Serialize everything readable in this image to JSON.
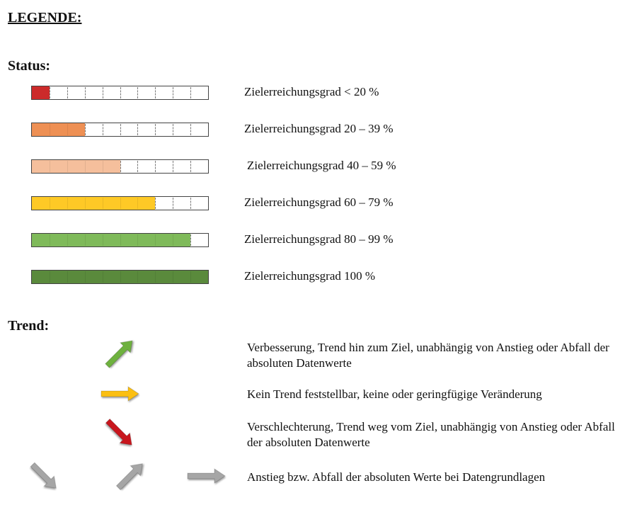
{
  "legend_title": "LEGENDE:",
  "status": {
    "heading": "Status:",
    "segments_total": 10,
    "rows": [
      {
        "label": "Zielerreichungsgrad < 20 %",
        "filled_segments": 1,
        "color": "#cc2a2a"
      },
      {
        "label": "Zielerreichungsgrad 20 – 39 %",
        "filled_segments": 3,
        "color": "#ee9054"
      },
      {
        "label": "Zielerreichungsgrad 40 – 59 %",
        "filled_segments": 5,
        "color": "#f5bf9c"
      },
      {
        "label": "Zielerreichungsgrad 60 – 79 %",
        "filled_segments": 7,
        "color": "#fec926"
      },
      {
        "label": "Zielerreichungsgrad 80 – 99 %",
        "filled_segments": 9,
        "color": "#7fba5a"
      },
      {
        "label": "Zielerreichungsgrad 100 %",
        "filled_segments": 10,
        "color": "#5a8a3c"
      }
    ]
  },
  "trend": {
    "heading": "Trend:",
    "items": [
      {
        "text": "Verbesserung, Trend hin zum Ziel, unabhängig von Anstieg oder Abfall der absoluten Datenwerte",
        "arrow_icon": "arrow-up-right-icon",
        "color": "#6eb13e"
      },
      {
        "text": "Kein Trend feststellbar, keine oder geringfügige Veränderung",
        "arrow_icon": "arrow-right-icon",
        "color": "#fbbf12"
      },
      {
        "text": "Verschlechterung, Trend weg vom Ziel, unabhängig von Anstieg oder Abfall der absoluten Datenwerte",
        "arrow_icon": "arrow-down-right-icon",
        "color": "#c8161d"
      },
      {
        "text": "Anstieg bzw. Abfall der absoluten Werte bei Datengrundlagen",
        "arrow_icon": "gray-arrows-icon",
        "color": "#a6a6a6"
      }
    ]
  }
}
